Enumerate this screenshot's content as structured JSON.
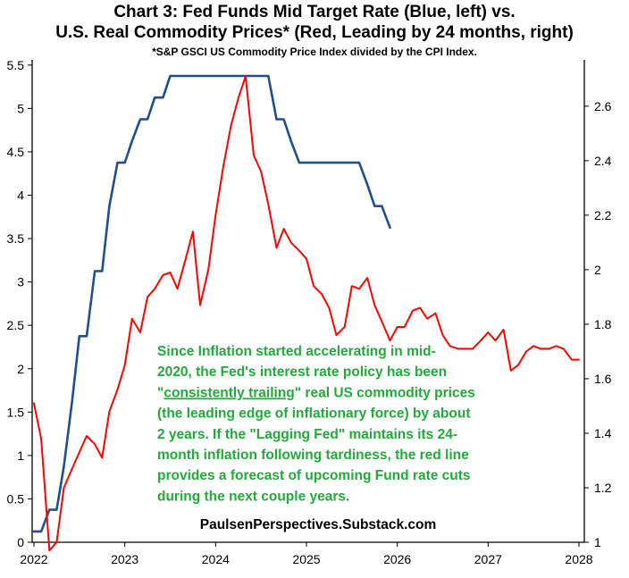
{
  "title_line1": "Chart 3: Fed Funds Mid Target Rate (Blue, left) vs.",
  "title_line2": "U.S. Real Commodity Prices* (Red, Leading by 24 months, right)",
  "subtitle": "*S&P GSCI US Commodity Price Index divided by the CPI Index.",
  "annotation": {
    "lines": [
      "Since Inflation started accelerating in mid-",
      "2020, the Fed's interest rate policy has been",
      "\"consistently trailing\" real US commodity prices",
      "(the leading edge of inflationary force) by about",
      "2 years.  If the \"Lagging Fed\" maintains its 24-",
      "month inflation following tardiness, the red line",
      "provides a forecast of upcoming Fund rate cuts",
      "during the next couple years."
    ],
    "underlined_phrase": "consistently trailing",
    "color": "#22aa3a"
  },
  "source": "PaulsenPerspectives.Substack.com",
  "chart_data": {
    "type": "line",
    "title": "Chart 3: Fed Funds Mid Target Rate (Blue, left) vs. U.S. Real Commodity Prices* (Red, Leading by 24 months, right)",
    "xlim": [
      2022,
      2028
    ],
    "x_ticks": [
      2022,
      2023,
      2024,
      2025,
      2026,
      2027,
      2028
    ],
    "x_tick_labels": [
      "2022",
      "2023",
      "2024",
      "2025",
      "2026",
      "2027",
      "2028"
    ],
    "y_left": {
      "range": [
        0,
        5.5
      ],
      "ticks": [
        0,
        0.5,
        1,
        1.5,
        2,
        2.5,
        3,
        3.5,
        4,
        4.5,
        5,
        5.5
      ],
      "tick_labels": [
        "0",
        "0.5",
        "1",
        "1.5",
        "2",
        "2.5",
        "3",
        "3.5",
        "4",
        "4.5",
        "5",
        "5.5"
      ]
    },
    "y_right": {
      "range": [
        1,
        2.75
      ],
      "ticks": [
        1,
        1.2,
        1.4,
        1.6,
        1.8,
        2,
        2.2,
        2.4,
        2.6
      ],
      "tick_labels": [
        "1",
        "1.2",
        "1.4",
        "1.6",
        "1.8",
        "2",
        "2.2",
        "2.4",
        "2.6"
      ]
    },
    "grid": false,
    "series": [
      {
        "name": "Fed Funds Mid Target Rate",
        "axis": "left",
        "color": "#1f4e91",
        "x": [
          2022.0,
          2022.08,
          2022.17,
          2022.25,
          2022.33,
          2022.42,
          2022.5,
          2022.58,
          2022.67,
          2022.75,
          2022.83,
          2022.92,
          2023.0,
          2023.08,
          2023.17,
          2023.25,
          2023.33,
          2023.42,
          2023.5,
          2023.58,
          2023.67,
          2023.75,
          2023.83,
          2023.92,
          2024.0,
          2024.08,
          2024.17,
          2024.25,
          2024.33,
          2024.42,
          2024.5,
          2024.58,
          2024.67,
          2024.75,
          2024.83,
          2024.92,
          2025.0,
          2025.08,
          2025.17,
          2025.25,
          2025.33,
          2025.42,
          2025.5,
          2025.58,
          2025.67,
          2025.75,
          2025.83,
          2025.92
        ],
        "values": [
          0.125,
          0.125,
          0.375,
          0.375,
          0.875,
          1.625,
          2.375,
          2.375,
          3.125,
          3.125,
          3.875,
          4.375,
          4.375,
          4.625,
          4.875,
          4.875,
          5.125,
          5.125,
          5.375,
          5.375,
          5.375,
          5.375,
          5.375,
          5.375,
          5.375,
          5.375,
          5.375,
          5.375,
          5.375,
          5.375,
          5.375,
          5.375,
          4.875,
          4.875,
          4.625,
          4.375,
          4.375,
          4.375,
          4.375,
          4.375,
          4.375,
          4.375,
          4.375,
          4.375,
          4.125,
          3.875,
          3.875,
          3.625
        ]
      },
      {
        "name": "U.S. Real Commodity Prices (leading by 24 months)",
        "axis": "right",
        "color": "#ff0000",
        "x": [
          2022.0,
          2022.08,
          2022.17,
          2022.25,
          2022.33,
          2022.42,
          2022.5,
          2022.58,
          2022.67,
          2022.75,
          2022.83,
          2022.92,
          2023.0,
          2023.08,
          2023.17,
          2023.25,
          2023.33,
          2023.42,
          2023.5,
          2023.58,
          2023.67,
          2023.75,
          2023.83,
          2023.92,
          2024.0,
          2024.08,
          2024.17,
          2024.25,
          2024.33,
          2024.42,
          2024.5,
          2024.58,
          2024.67,
          2024.75,
          2024.83,
          2024.92,
          2025.0,
          2025.08,
          2025.17,
          2025.25,
          2025.33,
          2025.42,
          2025.5,
          2025.58,
          2025.67,
          2025.75,
          2025.83,
          2025.92,
          2026.0,
          2026.08,
          2026.17,
          2026.25,
          2026.33,
          2026.42,
          2026.5,
          2026.58,
          2026.67,
          2026.75,
          2026.83,
          2026.92,
          2027.0,
          2027.08,
          2027.17,
          2027.25,
          2027.33,
          2027.42,
          2027.5,
          2027.58,
          2027.67,
          2027.75,
          2027.83,
          2027.92,
          2028.0
        ],
        "values": [
          1.51,
          1.38,
          0.97,
          1.0,
          1.2,
          1.27,
          1.33,
          1.39,
          1.36,
          1.31,
          1.48,
          1.56,
          1.65,
          1.82,
          1.77,
          1.9,
          1.93,
          1.98,
          1.99,
          1.93,
          2.04,
          2.14,
          1.87,
          2.0,
          2.2,
          2.37,
          2.53,
          2.63,
          2.71,
          2.42,
          2.36,
          2.24,
          2.08,
          2.15,
          2.1,
          2.07,
          2.04,
          1.94,
          1.91,
          1.86,
          1.76,
          1.79,
          1.94,
          1.93,
          1.97,
          1.87,
          1.81,
          1.74,
          1.79,
          1.79,
          1.85,
          1.86,
          1.82,
          1.84,
          1.76,
          1.72,
          1.71,
          1.71,
          1.71,
          1.74,
          1.77,
          1.74,
          1.78,
          1.63,
          1.65,
          1.7,
          1.72,
          1.71,
          1.71,
          1.72,
          1.71,
          1.67,
          1.67
        ]
      }
    ],
    "annotations": [
      "Since Inflation started accelerating in mid-2020, the Fed's interest rate policy has been \"consistently trailing\" real US commodity prices (the leading edge of inflationary force) by about 2 years.",
      "PaulsenPerspectives.Substack.com"
    ]
  }
}
